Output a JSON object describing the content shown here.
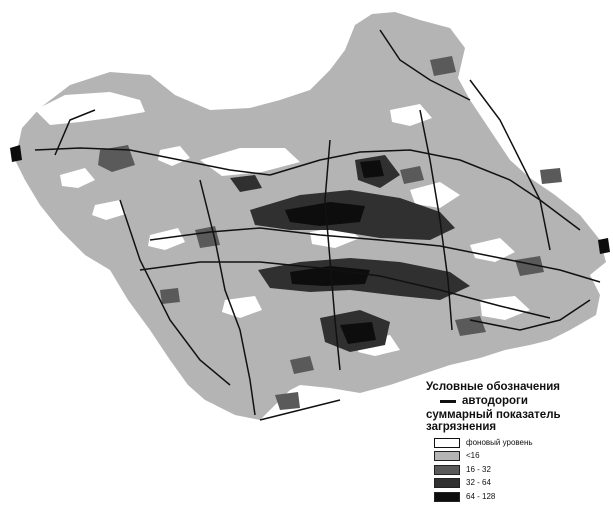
{
  "legend": {
    "title": "Условные обозначения",
    "road_label": "автодороги",
    "index_label": "суммарный показатель загрязнения",
    "classes": [
      {
        "label": "фоновый уровень",
        "color": "#ffffff"
      },
      {
        "label": "<16",
        "color": "#b4b4b4"
      },
      {
        "label": "16 - 32",
        "color": "#5a5a5a"
      },
      {
        "label": "32 - 64",
        "color": "#303030"
      },
      {
        "label": "64 - 128",
        "color": "#0d0d0d"
      }
    ]
  },
  "colors": {
    "background_zone": "#ffffff",
    "pollution_lt16": "#b4b4b4",
    "pollution_16_32": "#5a5a5a",
    "pollution_32_64": "#303030",
    "pollution_64_128": "#0d0d0d",
    "roads": "#111111"
  }
}
